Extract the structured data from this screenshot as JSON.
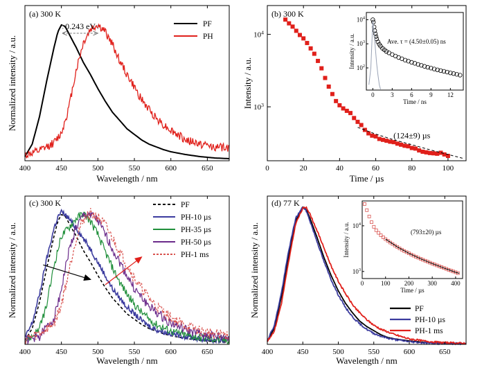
{
  "chart_data": [
    {
      "id": "a",
      "type": "line",
      "panel_label": "(a) 300 K",
      "xlabel": "Wavelength / nm",
      "ylabel": "Normalized intensity / a.u.",
      "xlim": [
        400,
        680
      ],
      "ylim": [
        0,
        1.12
      ],
      "xticks": [
        400,
        450,
        500,
        550,
        600,
        650
      ],
      "annotation": "0.243 eV",
      "legend_position": "top-right",
      "series": [
        {
          "name": "PF",
          "color": "#000000",
          "noise": 0,
          "x": [
            400,
            410,
            420,
            430,
            440,
            445,
            450,
            455,
            460,
            470,
            480,
            490,
            500,
            510,
            520,
            530,
            540,
            550,
            560,
            570,
            580,
            590,
            600,
            620,
            640,
            660,
            680
          ],
          "y": [
            0.03,
            0.12,
            0.32,
            0.58,
            0.82,
            0.93,
            0.98,
            0.97,
            0.92,
            0.82,
            0.71,
            0.62,
            0.52,
            0.43,
            0.35,
            0.29,
            0.23,
            0.19,
            0.15,
            0.12,
            0.1,
            0.08,
            0.065,
            0.045,
            0.03,
            0.02,
            0.015
          ]
        },
        {
          "name": "PH",
          "color": "#e0201b",
          "noise": 0.03,
          "x": [
            400,
            420,
            440,
            450,
            460,
            470,
            480,
            490,
            500,
            510,
            520,
            530,
            540,
            550,
            560,
            570,
            580,
            590,
            600,
            620,
            640,
            660,
            680
          ],
          "y": [
            0.04,
            0.07,
            0.13,
            0.2,
            0.38,
            0.65,
            0.85,
            0.95,
            0.98,
            0.93,
            0.84,
            0.72,
            0.62,
            0.53,
            0.44,
            0.37,
            0.31,
            0.26,
            0.22,
            0.15,
            0.12,
            0.1,
            0.09
          ]
        }
      ]
    },
    {
      "id": "b",
      "type": "scatter",
      "panel_label": "(b) 300 K",
      "xlabel": "Time / µs",
      "ylabel": "Intensity / a.u.",
      "xlim": [
        0,
        110
      ],
      "ylim": [
        180,
        25000
      ],
      "yscale": "log",
      "xticks": [
        0,
        20,
        40,
        60,
        80,
        100
      ],
      "yticks": [
        {
          "v": 1000,
          "label": "10",
          "exp": "3"
        },
        {
          "v": 10000,
          "label": "10",
          "exp": "4"
        }
      ],
      "annotation": "(124±9) µs",
      "series": [
        {
          "name": "",
          "color": "#e0201b",
          "x": [
            10,
            12,
            14,
            16,
            18,
            20,
            22,
            24,
            26,
            28,
            30,
            32,
            34,
            36,
            38,
            40,
            42,
            44,
            46,
            48,
            50,
            52,
            54,
            56,
            58,
            60,
            62,
            64,
            66,
            68,
            70,
            72,
            74,
            76,
            78,
            80,
            82,
            84,
            86,
            88,
            90,
            92,
            94,
            96,
            98,
            100
          ],
          "y": [
            16000,
            14200,
            12800,
            11200,
            9800,
            8800,
            7600,
            6400,
            5400,
            4300,
            3400,
            2500,
            1900,
            1500,
            1200,
            1050,
            950,
            880,
            820,
            700,
            620,
            560,
            480,
            430,
            400,
            390,
            360,
            350,
            340,
            330,
            325,
            310,
            300,
            290,
            285,
            270,
            265,
            250,
            240,
            235,
            230,
            228,
            225,
            232,
            220,
            210
          ]
        },
        {
          "name": "",
          "color": "#000000",
          "type": "dashed-fit",
          "x": [
            50,
            60,
            70,
            80,
            90,
            100,
            108
          ],
          "y": [
            520,
            420,
            350,
            300,
            255,
            220,
            195
          ]
        }
      ],
      "inset": {
        "xlabel": "Time / ns",
        "ylabel": "Intensity / a.u.",
        "xlim": [
          -1,
          14
        ],
        "ylim": [
          12,
          20000
        ],
        "yscale": "log",
        "xticks": [
          0,
          3,
          6,
          9,
          12
        ],
        "yticks": [
          {
            "v": 100,
            "label": "10",
            "exp": "2"
          },
          {
            "v": 1000,
            "label": "10",
            "exp": "3"
          },
          {
            "v": 10000,
            "label": "10",
            "exp": "4"
          }
        ],
        "annotation": "Ave. τ = (4.50±0.05) ns",
        "series": [
          {
            "name": "",
            "color": "#000000",
            "type": "circles",
            "x": [
              0,
              0.1,
              0.2,
              0.3,
              0.4,
              0.5,
              0.6,
              0.8,
              1.0,
              1.2,
              1.5,
              1.8,
              2.1,
              2.5,
              3,
              3.5,
              4,
              4.5,
              5,
              5.5,
              6,
              6.5,
              7,
              7.5,
              8,
              8.5,
              9,
              9.5,
              10,
              10.5,
              11,
              11.5,
              12,
              12.5,
              13,
              13.5
            ],
            "y": [
              10000,
              8000,
              5000,
              3500,
              2600,
              2000,
              1600,
              1200,
              950,
              800,
              650,
              560,
              480,
              420,
              360,
              310,
              270,
              240,
              210,
              190,
              170,
              155,
              140,
              128,
              116,
              106,
              98,
              90,
              83,
              77,
              72,
              67,
              62,
              58,
              54,
              50
            ]
          },
          {
            "name": "",
            "color": "#9aa3b5",
            "type": "irf",
            "x": [
              -0.6,
              -0.3,
              0,
              0.2,
              0.4,
              0.6,
              0.8,
              1.0,
              1.2
            ],
            "y": [
              20,
              100,
              9000,
              3000,
              600,
              150,
              50,
              20,
              13
            ]
          }
        ]
      }
    },
    {
      "id": "c",
      "type": "line",
      "panel_label": "(c) 300 K",
      "xlabel": "Wavelength / nm",
      "ylabel": "Normalized intensity / a.u.",
      "xlim": [
        400,
        680
      ],
      "ylim": [
        0,
        1.12
      ],
      "xticks": [
        400,
        450,
        500,
        550,
        600,
        650
      ],
      "legend_position": "top-right",
      "series": [
        {
          "name": "PF",
          "color": "#000000",
          "dash": "4,3",
          "noise": 0,
          "x": [
            400,
            410,
            420,
            430,
            440,
            445,
            450,
            455,
            460,
            470,
            480,
            490,
            500,
            510,
            520,
            530,
            540,
            550,
            560,
            570,
            580,
            590,
            600,
            620,
            640,
            660,
            680
          ],
          "y": [
            0.03,
            0.12,
            0.32,
            0.58,
            0.82,
            0.93,
            0.98,
            0.97,
            0.92,
            0.82,
            0.71,
            0.62,
            0.52,
            0.43,
            0.35,
            0.29,
            0.23,
            0.19,
            0.15,
            0.12,
            0.1,
            0.08,
            0.065,
            0.045,
            0.03,
            0.02,
            0.015
          ]
        },
        {
          "name": "PH-10 µs",
          "color": "#3b3b9e",
          "noise": 0.02,
          "x": [
            400,
            410,
            420,
            430,
            440,
            445,
            450,
            455,
            460,
            470,
            480,
            490,
            500,
            510,
            520,
            530,
            540,
            550,
            560,
            570,
            580,
            600,
            620,
            640,
            660,
            680
          ],
          "y": [
            0.05,
            0.16,
            0.38,
            0.65,
            0.88,
            0.96,
            1.0,
            0.98,
            0.95,
            0.88,
            0.8,
            0.72,
            0.62,
            0.52,
            0.42,
            0.35,
            0.28,
            0.23,
            0.18,
            0.14,
            0.11,
            0.08,
            0.06,
            0.04,
            0.03,
            0.03
          ]
        },
        {
          "name": "PH-35 µs",
          "color": "#1f8f3a",
          "noise": 0.03,
          "x": [
            400,
            410,
            420,
            430,
            440,
            450,
            460,
            470,
            480,
            490,
            500,
            510,
            520,
            530,
            540,
            550,
            560,
            570,
            580,
            600,
            620,
            640,
            660,
            680
          ],
          "y": [
            0.03,
            0.06,
            0.12,
            0.3,
            0.6,
            0.82,
            0.88,
            0.95,
            0.99,
            0.93,
            0.83,
            0.7,
            0.58,
            0.47,
            0.38,
            0.3,
            0.24,
            0.19,
            0.15,
            0.1,
            0.07,
            0.05,
            0.04,
            0.03
          ]
        },
        {
          "name": "PH-50 µs",
          "color": "#6a2a8a",
          "noise": 0.035,
          "x": [
            400,
            420,
            440,
            450,
            460,
            470,
            480,
            490,
            500,
            510,
            520,
            530,
            540,
            550,
            560,
            570,
            580,
            600,
            620,
            640,
            660,
            680
          ],
          "y": [
            0.03,
            0.06,
            0.2,
            0.42,
            0.7,
            0.88,
            0.97,
            0.99,
            0.93,
            0.83,
            0.72,
            0.62,
            0.52,
            0.42,
            0.35,
            0.29,
            0.24,
            0.16,
            0.11,
            0.08,
            0.06,
            0.05
          ]
        },
        {
          "name": "PH-1 ms",
          "color": "#d9534f",
          "dash": "3,2",
          "noise": 0.04,
          "x": [
            400,
            420,
            440,
            450,
            460,
            470,
            480,
            490,
            500,
            510,
            520,
            530,
            540,
            550,
            560,
            570,
            580,
            600,
            620,
            640,
            660,
            680
          ],
          "y": [
            0.04,
            0.08,
            0.16,
            0.3,
            0.55,
            0.8,
            0.95,
            0.99,
            0.96,
            0.9,
            0.8,
            0.7,
            0.6,
            0.5,
            0.42,
            0.35,
            0.29,
            0.2,
            0.14,
            0.1,
            0.08,
            0.07
          ]
        }
      ]
    },
    {
      "id": "d",
      "type": "line",
      "panel_label": "(d) 77 K",
      "xlabel": "Wavelength / nm",
      "ylabel": "Normalized intensity / a.u.",
      "xlim": [
        400,
        680
      ],
      "ylim": [
        0,
        1.08
      ],
      "xticks": [
        400,
        450,
        500,
        550,
        600,
        650
      ],
      "legend_position": "bottom-right",
      "series": [
        {
          "name": "PF",
          "color": "#000000",
          "noise": 0,
          "x": [
            400,
            410,
            420,
            430,
            440,
            450,
            455,
            460,
            470,
            480,
            490,
            500,
            510,
            520,
            530,
            540,
            550,
            560,
            570,
            580,
            600,
            620,
            640,
            660,
            680
          ],
          "y": [
            0.02,
            0.12,
            0.35,
            0.65,
            0.9,
            1.0,
            0.98,
            0.92,
            0.78,
            0.63,
            0.5,
            0.39,
            0.3,
            0.23,
            0.17,
            0.13,
            0.1,
            0.07,
            0.05,
            0.04,
            0.025,
            0.015,
            0.01,
            0.008,
            0.005
          ]
        },
        {
          "name": "PH-10 µs",
          "color": "#3b3b9e",
          "noise": 0.006,
          "x": [
            400,
            410,
            420,
            430,
            440,
            450,
            455,
            460,
            470,
            480,
            490,
            500,
            510,
            520,
            530,
            540,
            550,
            560,
            570,
            580,
            600,
            620,
            640,
            660,
            680
          ],
          "y": [
            0.03,
            0.14,
            0.38,
            0.68,
            0.92,
            1.0,
            0.97,
            0.9,
            0.75,
            0.6,
            0.47,
            0.36,
            0.27,
            0.2,
            0.15,
            0.11,
            0.08,
            0.06,
            0.045,
            0.035,
            0.02,
            0.012,
            0.008,
            0.006,
            0.005
          ]
        },
        {
          "name": "PH-1 ms",
          "color": "#e0201b",
          "noise": 0.006,
          "x": [
            400,
            410,
            420,
            430,
            440,
            450,
            455,
            460,
            470,
            480,
            490,
            500,
            510,
            520,
            530,
            540,
            550,
            560,
            570,
            580,
            600,
            620,
            640,
            660,
            680
          ],
          "y": [
            0.02,
            0.1,
            0.3,
            0.6,
            0.88,
            0.99,
            1.0,
            0.95,
            0.83,
            0.7,
            0.57,
            0.46,
            0.37,
            0.29,
            0.23,
            0.18,
            0.14,
            0.11,
            0.09,
            0.07,
            0.04,
            0.025,
            0.015,
            0.01,
            0.008
          ]
        }
      ],
      "inset": {
        "xlabel": "Time / µs",
        "ylabel": "Intensity / a.u.",
        "xlim": [
          0,
          430
        ],
        "ylim": [
          700,
          35000
        ],
        "yscale": "log",
        "xticks": [
          0,
          100,
          200,
          300,
          400
        ],
        "yticks": [
          {
            "v": 1000,
            "label": "10",
            "exp": "3"
          },
          {
            "v": 10000,
            "label": "10",
            "exp": "4"
          }
        ],
        "annotation": "(793±20) µs",
        "series": [
          {
            "name": "",
            "color": "#d9534f",
            "type": "squares",
            "x": [
              10,
              20,
              30,
              40,
              50,
              60,
              70,
              80,
              90,
              100,
              110,
              120,
              130,
              140,
              150,
              160,
              170,
              180,
              190,
              200,
              210,
              220,
              230,
              240,
              250,
              260,
              270,
              280,
              290,
              300,
              310,
              320,
              330,
              340,
              350,
              360,
              370,
              380,
              390,
              400,
              410
            ],
            "y": [
              30000,
              22000,
              16000,
              12000,
              9500,
              8000,
              7000,
              6200,
              5600,
              5100,
              4700,
              4300,
              4000,
              3700,
              3450,
              3200,
              3000,
              2800,
              2650,
              2500,
              2350,
              2220,
              2100,
              2000,
              1900,
              1800,
              1720,
              1640,
              1560,
              1490,
              1420,
              1360,
              1300,
              1240,
              1190,
              1140,
              1090,
              1050,
              1000,
              960,
              920
            ]
          },
          {
            "name": "",
            "color": "#000000",
            "type": "fit",
            "x": [
              100,
              150,
              200,
              250,
              300,
              350,
              400,
              415
            ],
            "y": [
              5100,
              3450,
              2500,
              1900,
              1490,
              1190,
              960,
              910
            ]
          }
        ]
      }
    }
  ]
}
